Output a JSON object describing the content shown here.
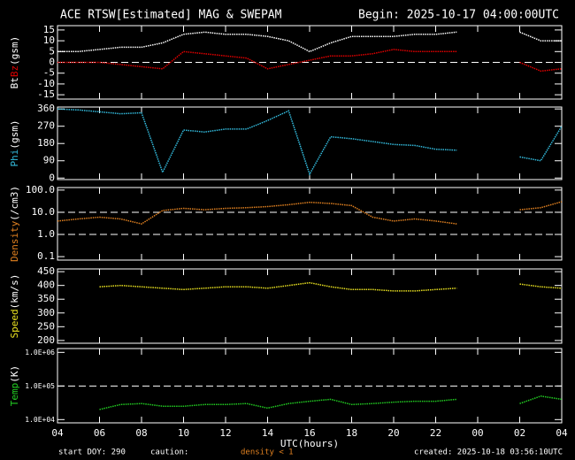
{
  "header": {
    "title": "ACE RTSW[Estimated] MAG & SWEPAM",
    "begin": "Begin: 2025-10-17 04:00:00UTC"
  },
  "footer": {
    "start": "start DOY: 290",
    "caution": "caution:",
    "density_note": "density < 1",
    "created": "created: 2025-10-18 03:56:10UTC"
  },
  "chart_data": [
    {
      "type": "line",
      "ylabel": "(gsm)",
      "x": [
        4,
        5,
        6,
        7,
        8,
        9,
        10,
        11,
        12,
        13,
        14,
        15,
        16,
        17,
        18,
        19,
        20,
        21,
        22,
        23,
        24,
        25,
        26,
        27,
        28
      ],
      "xlim": [
        4,
        28
      ],
      "xticks": [
        4,
        6,
        8,
        10,
        12,
        14,
        16,
        18,
        20,
        22,
        24,
        26,
        28
      ],
      "ylim": [
        -17,
        17
      ],
      "yticks": [
        15,
        10,
        5,
        0,
        -5,
        -10,
        -15
      ],
      "hlines": [
        0
      ],
      "series": [
        {
          "name": "Bt",
          "color": "#ffffff",
          "values": [
            5,
            5,
            6,
            7,
            7,
            9,
            13,
            14,
            13,
            13,
            12,
            10,
            5,
            9,
            12,
            12,
            12,
            13,
            13,
            14,
            null,
            null,
            14,
            10,
            10
          ]
        },
        {
          "name": "Bz",
          "color": "#e00000",
          "values": [
            0,
            0,
            0,
            -1,
            -2,
            -3,
            5,
            4,
            3,
            2,
            -3,
            -1,
            1,
            3,
            3,
            4,
            6,
            5,
            5,
            5,
            null,
            null,
            0,
            -4,
            -3
          ]
        }
      ]
    },
    {
      "type": "line",
      "ylabel": "(gsm)",
      "x": [
        4,
        5,
        6,
        7,
        8,
        9,
        10,
        11,
        12,
        13,
        14,
        15,
        16,
        17,
        18,
        19,
        20,
        21,
        22,
        23,
        24,
        25,
        26,
        27,
        28
      ],
      "xlim": [
        4,
        28
      ],
      "xticks": [
        4,
        6,
        8,
        10,
        12,
        14,
        16,
        18,
        20,
        22,
        24,
        26,
        28
      ],
      "ylim": [
        -8,
        370
      ],
      "yticks": [
        360,
        270,
        180,
        90,
        0
      ],
      "series": [
        {
          "name": "Phi",
          "color": "#33bbdd",
          "values": [
            360,
            355,
            345,
            335,
            340,
            30,
            250,
            240,
            255,
            255,
            300,
            350,
            20,
            215,
            205,
            190,
            175,
            170,
            150,
            145,
            null,
            null,
            110,
            90,
            270
          ]
        }
      ]
    },
    {
      "type": "line",
      "ylabel": "(/cm3)",
      "ylog": true,
      "x": [
        4,
        5,
        6,
        7,
        8,
        9,
        10,
        11,
        12,
        13,
        14,
        15,
        16,
        17,
        18,
        19,
        20,
        21,
        22,
        23,
        24,
        25,
        26,
        27,
        28
      ],
      "xlim": [
        4,
        28
      ],
      "xticks": [
        4,
        6,
        8,
        10,
        12,
        14,
        16,
        18,
        20,
        22,
        24,
        26,
        28
      ],
      "ylim": [
        0.07,
        130
      ],
      "yticks": [
        {
          "value": 100,
          "label": "100.0"
        },
        {
          "value": 10,
          "label": "10.0"
        },
        {
          "value": 1,
          "label": "1.0"
        },
        0.1
      ],
      "hlines": [
        10,
        1
      ],
      "series": [
        {
          "name": "Density",
          "color": "#e08020",
          "values": [
            4,
            5,
            6,
            5,
            3,
            12,
            15,
            13,
            15,
            16,
            18,
            22,
            28,
            25,
            20,
            6,
            4,
            5,
            4,
            3,
            null,
            null,
            13,
            16,
            30
          ]
        }
      ]
    },
    {
      "type": "line",
      "ylabel": "(km/s)",
      "x": [
        4,
        5,
        6,
        7,
        8,
        9,
        10,
        11,
        12,
        13,
        14,
        15,
        16,
        17,
        18,
        19,
        20,
        21,
        22,
        23,
        24,
        25,
        26,
        27,
        28
      ],
      "xlim": [
        4,
        28
      ],
      "xticks": [
        4,
        6,
        8,
        10,
        12,
        14,
        16,
        18,
        20,
        22,
        24,
        26,
        28
      ],
      "ylim": [
        190,
        460
      ],
      "yticks": [
        450,
        400,
        350,
        300,
        250,
        200
      ],
      "series": [
        {
          "name": "Speed",
          "color": "#e8e020",
          "values": [
            null,
            null,
            395,
            400,
            395,
            390,
            385,
            390,
            395,
            395,
            390,
            400,
            410,
            395,
            385,
            385,
            380,
            380,
            385,
            390,
            null,
            null,
            405,
            395,
            390
          ]
        }
      ]
    },
    {
      "type": "line",
      "ylabel": "(K)",
      "xlabel": "UTC(hours)",
      "ylog": true,
      "x": [
        4,
        5,
        6,
        7,
        8,
        9,
        10,
        11,
        12,
        13,
        14,
        15,
        16,
        17,
        18,
        19,
        20,
        21,
        22,
        23,
        24,
        25,
        26,
        27,
        28
      ],
      "xlim": [
        4,
        28
      ],
      "xticks": [
        {
          "value": 4,
          "label": "04"
        },
        {
          "value": 6,
          "label": "06"
        },
        {
          "value": 8,
          "label": "08"
        },
        10,
        12,
        14,
        16,
        18,
        20,
        22,
        {
          "value": 24,
          "label": "00"
        },
        {
          "value": 26,
          "label": "02"
        },
        {
          "value": 28,
          "label": "04"
        }
      ],
      "ylim": [
        8000,
        1300000
      ],
      "yticks": [
        {
          "value": 1000000,
          "label": "1.0E+06"
        },
        {
          "value": 100000,
          "label": "1.0E+05"
        },
        {
          "value": 10000,
          "label": "1.0E+04"
        }
      ],
      "hlines": [
        100000
      ],
      "series": [
        {
          "name": "Temp",
          "color": "#22cc22",
          "values": [
            null,
            null,
            20000,
            28000,
            30000,
            25000,
            25000,
            28000,
            28000,
            30000,
            22000,
            30000,
            35000,
            40000,
            28000,
            30000,
            33000,
            35000,
            35000,
            40000,
            null,
            null,
            30000,
            50000,
            40000
          ]
        }
      ]
    }
  ]
}
